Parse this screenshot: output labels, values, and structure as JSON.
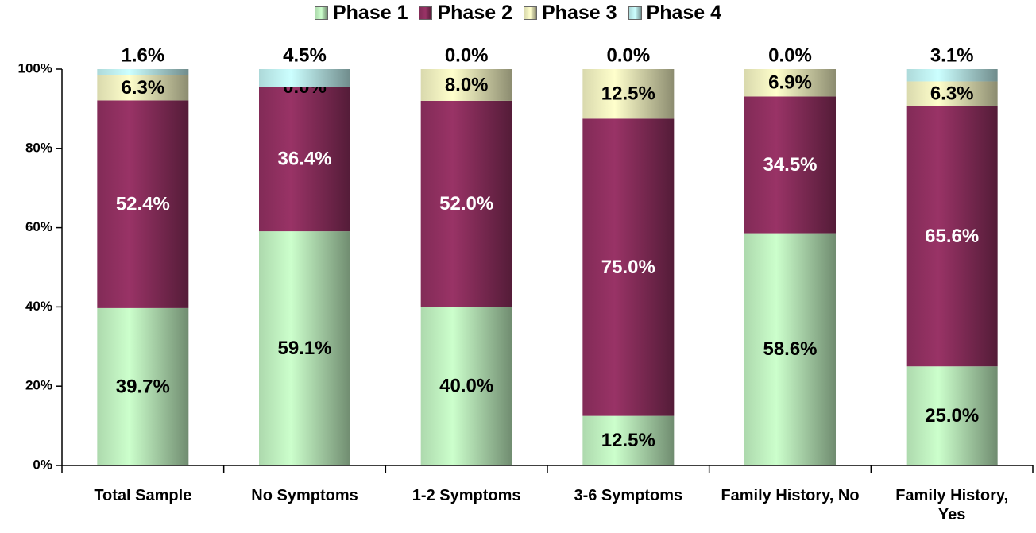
{
  "chart_data": {
    "type": "stacked_bar",
    "categories": [
      "Total Sample",
      "No Symptoms",
      "1-2 Symptoms",
      "3-6 Symptoms",
      "Family History, No",
      "Family History, Yes"
    ],
    "series": [
      {
        "name": "Phase 1",
        "color": "#ccffcc",
        "values": [
          39.7,
          59.1,
          40.0,
          12.5,
          58.6,
          25.0
        ],
        "value_labels": [
          "39.7%",
          "59.1%",
          "40.0%",
          "12.5%",
          "58.6%",
          "25.0%"
        ]
      },
      {
        "name": "Phase 2",
        "color": "#993366",
        "values": [
          52.4,
          36.4,
          52.0,
          75.0,
          34.5,
          65.6
        ],
        "value_labels": [
          "52.4%",
          "36.4%",
          "52.0%",
          "75.0%",
          "34.5%",
          "65.6%"
        ]
      },
      {
        "name": "Phase 3",
        "color": "#ffffcc",
        "values": [
          6.3,
          0.0,
          8.0,
          12.5,
          6.9,
          6.3
        ],
        "value_labels": [
          "6.3%",
          "0.0%",
          "8.0%",
          "12.5%",
          "6.9%",
          "6.3%"
        ]
      },
      {
        "name": "Phase 4",
        "color": "#ccffff",
        "values": [
          1.6,
          4.5,
          0.0,
          0.0,
          0.0,
          3.1
        ],
        "value_labels": [
          "1.6%",
          "4.5%",
          "0.0%",
          "0.0%",
          "0.0%",
          "3.1%"
        ]
      }
    ],
    "ylim": [
      0,
      100
    ],
    "yticks": [
      {
        "value": 0,
        "label": "0%"
      },
      {
        "value": 20,
        "label": "20%"
      },
      {
        "value": 40,
        "label": "40%"
      },
      {
        "value": 60,
        "label": "60%"
      },
      {
        "value": 80,
        "label": "80%"
      },
      {
        "value": 100,
        "label": "100%"
      }
    ],
    "legend": "top"
  }
}
